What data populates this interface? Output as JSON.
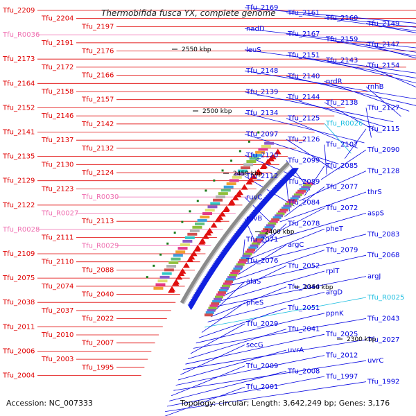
{
  "title": "Thermobifida fusca YX, complete genome",
  "footer": {
    "accession": "Accession: NC_007333",
    "summary": "Topology: circular; Length: 3,642,249 bp; Genes: 3,176"
  },
  "ticks": [
    "2550 kbp",
    "2500 kbp",
    "2450 kbp",
    "2400 kbp",
    "2350 kbp",
    "2300 kbp"
  ],
  "colors": {
    "reverse_strand_label": "#e00000",
    "rna_reverse_label": "#ef6fb0",
    "forward_strand_label": "#0000e0",
    "rna_forward_label": "#18bde0",
    "backbone": "#8a8a8a"
  },
  "labels_left": [
    {
      "text": "Tfu_2209",
      "kind": "gene"
    },
    {
      "text": "Tfu_2204",
      "kind": "gene"
    },
    {
      "text": "Tfu_2197",
      "kind": "gene"
    },
    {
      "text": "Tfu_R0036",
      "kind": "rna"
    },
    {
      "text": "Tfu_2191",
      "kind": "gene"
    },
    {
      "text": "Tfu_2176",
      "kind": "gene"
    },
    {
      "text": "Tfu_2173",
      "kind": "gene"
    },
    {
      "text": "Tfu_2172",
      "kind": "gene"
    },
    {
      "text": "Tfu_2166",
      "kind": "gene"
    },
    {
      "text": "Tfu_2164",
      "kind": "gene"
    },
    {
      "text": "Tfu_2158",
      "kind": "gene"
    },
    {
      "text": "Tfu_2157",
      "kind": "gene"
    },
    {
      "text": "Tfu_2152",
      "kind": "gene"
    },
    {
      "text": "Tfu_2146",
      "kind": "gene"
    },
    {
      "text": "Tfu_2142",
      "kind": "gene"
    },
    {
      "text": "Tfu_2141",
      "kind": "gene"
    },
    {
      "text": "Tfu_2137",
      "kind": "gene"
    },
    {
      "text": "Tfu_2132",
      "kind": "gene"
    },
    {
      "text": "Tfu_2135",
      "kind": "gene"
    },
    {
      "text": "Tfu_2130",
      "kind": "gene"
    },
    {
      "text": "Tfu_2124",
      "kind": "gene"
    },
    {
      "text": "Tfu_2129",
      "kind": "gene"
    },
    {
      "text": "Tfu_2123",
      "kind": "gene"
    },
    {
      "text": "Tfu_R0030",
      "kind": "rna"
    },
    {
      "text": "Tfu_2122",
      "kind": "gene"
    },
    {
      "text": "Tfu_R0027",
      "kind": "rna"
    },
    {
      "text": "Tfu_2113",
      "kind": "gene"
    },
    {
      "text": "Tfu_R0028",
      "kind": "rna"
    },
    {
      "text": "Tfu_2111",
      "kind": "gene"
    },
    {
      "text": "Tfu_R0029",
      "kind": "rna"
    },
    {
      "text": "Tfu_2109",
      "kind": "gene"
    },
    {
      "text": "Tfu_2110",
      "kind": "gene"
    },
    {
      "text": "Tfu_2088",
      "kind": "gene"
    },
    {
      "text": "Tfu_2075",
      "kind": "gene"
    },
    {
      "text": "Tfu_2074",
      "kind": "gene"
    },
    {
      "text": "Tfu_2040",
      "kind": "gene"
    },
    {
      "text": "Tfu_2038",
      "kind": "gene"
    },
    {
      "text": "Tfu_2037",
      "kind": "gene"
    },
    {
      "text": "Tfu_2022",
      "kind": "gene"
    },
    {
      "text": "Tfu_2011",
      "kind": "gene"
    },
    {
      "text": "Tfu_2010",
      "kind": "gene"
    },
    {
      "text": "Tfu_2007",
      "kind": "gene"
    },
    {
      "text": "Tfu_2006",
      "kind": "gene"
    },
    {
      "text": "Tfu_2003",
      "kind": "gene"
    },
    {
      "text": "Tfu_1995",
      "kind": "gene"
    },
    {
      "text": "Tfu_2004",
      "kind": "gene"
    }
  ],
  "labels_right": [
    {
      "text": "Tfu_2169",
      "kind": "gene"
    },
    {
      "text": "Tfu_2161",
      "kind": "gene"
    },
    {
      "text": "Tfu_2160",
      "kind": "gene"
    },
    {
      "text": "Tfu_2149",
      "kind": "gene"
    },
    {
      "text": "nadD",
      "kind": "gene"
    },
    {
      "text": "Tfu_2167",
      "kind": "gene"
    },
    {
      "text": "Tfu_2159",
      "kind": "gene"
    },
    {
      "text": "Tfu_2147",
      "kind": "gene"
    },
    {
      "text": "leuS",
      "kind": "gene"
    },
    {
      "text": "Tfu_2151",
      "kind": "gene"
    },
    {
      "text": "Tfu_2143",
      "kind": "gene"
    },
    {
      "text": "Tfu_2154",
      "kind": "gene"
    },
    {
      "text": "Tfu_2148",
      "kind": "gene"
    },
    {
      "text": "Tfu_2140",
      "kind": "gene"
    },
    {
      "text": "nrdR",
      "kind": "gene"
    },
    {
      "text": "rnhB",
      "kind": "gene"
    },
    {
      "text": "Tfu_2139",
      "kind": "gene"
    },
    {
      "text": "Tfu_2144",
      "kind": "gene"
    },
    {
      "text": "Tfu_2138",
      "kind": "gene"
    },
    {
      "text": "Tfu_2127",
      "kind": "gene"
    },
    {
      "text": "Tfu_2134",
      "kind": "gene"
    },
    {
      "text": "Tfu_2125",
      "kind": "gene"
    },
    {
      "text": "Tfu_R0026",
      "kind": "rna"
    },
    {
      "text": "Tfu_2115",
      "kind": "gene"
    },
    {
      "text": "Tfu_2097",
      "kind": "gene"
    },
    {
      "text": "Tfu_2126",
      "kind": "gene"
    },
    {
      "text": "Tfu_2107",
      "kind": "gene"
    },
    {
      "text": "Tfu_2090",
      "kind": "gene"
    },
    {
      "text": "Tfu_2120",
      "kind": "gene"
    },
    {
      "text": "Tfu_2099",
      "kind": "gene"
    },
    {
      "text": "Tfu_2085",
      "kind": "gene"
    },
    {
      "text": "Tfu_2128",
      "kind": "gene"
    },
    {
      "text": "Tfu_2112",
      "kind": "gene"
    },
    {
      "text": "Tfu_2089",
      "kind": "gene"
    },
    {
      "text": "Tfu_2077",
      "kind": "gene"
    },
    {
      "text": "thrS",
      "kind": "gene"
    },
    {
      "text": "ruvC",
      "kind": "gene"
    },
    {
      "text": "Tfu_2084",
      "kind": "gene"
    },
    {
      "text": "Tfu_2072",
      "kind": "gene"
    },
    {
      "text": "aspS",
      "kind": "gene"
    },
    {
      "text": "ruvB",
      "kind": "gene"
    },
    {
      "text": "Tfu_2078",
      "kind": "gene"
    },
    {
      "text": "pheT",
      "kind": "gene"
    },
    {
      "text": "Tfu_2083",
      "kind": "gene"
    },
    {
      "text": "Tfu_2071",
      "kind": "gene"
    },
    {
      "text": "argC",
      "kind": "gene"
    },
    {
      "text": "Tfu_2079",
      "kind": "gene"
    },
    {
      "text": "Tfu_2068",
      "kind": "gene"
    },
    {
      "text": "Tfu_2076",
      "kind": "gene"
    },
    {
      "text": "Tfu_2052",
      "kind": "gene"
    },
    {
      "text": "rplT",
      "kind": "gene"
    },
    {
      "text": "argJ",
      "kind": "gene"
    },
    {
      "text": "alaS",
      "kind": "gene"
    },
    {
      "text": "Tfu_2044",
      "kind": "gene"
    },
    {
      "text": "argD",
      "kind": "gene"
    },
    {
      "text": "Tfu_R0025",
      "kind": "rna"
    },
    {
      "text": "pheS",
      "kind": "gene"
    },
    {
      "text": "Tfu_2051",
      "kind": "gene"
    },
    {
      "text": "ppnK",
      "kind": "gene"
    },
    {
      "text": "Tfu_2043",
      "kind": "gene"
    },
    {
      "text": "Tfu_2029",
      "kind": "gene"
    },
    {
      "text": "Tfu_2041",
      "kind": "gene"
    },
    {
      "text": "Tfu_2025",
      "kind": "gene"
    },
    {
      "text": "Tfu_2027",
      "kind": "gene"
    },
    {
      "text": "secG",
      "kind": "gene"
    },
    {
      "text": "uvrA",
      "kind": "gene"
    },
    {
      "text": "Tfu_2012",
      "kind": "gene"
    },
    {
      "text": "uvrC",
      "kind": "gene"
    },
    {
      "text": "Tfu_2009",
      "kind": "gene"
    },
    {
      "text": "Tfu_2008",
      "kind": "gene"
    },
    {
      "text": "Tfu_1997",
      "kind": "gene"
    },
    {
      "text": "Tfu_1992",
      "kind": "gene"
    },
    {
      "text": "Tfu_2001",
      "kind": "gene"
    }
  ]
}
